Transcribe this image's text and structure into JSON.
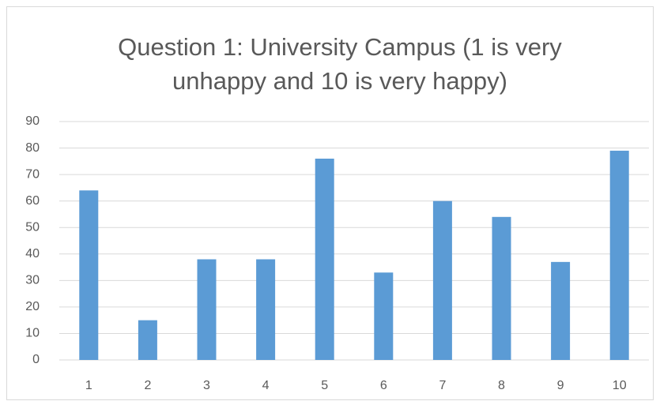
{
  "chart_data": {
    "type": "bar",
    "title": "Question 1: University Campus (1 is very unhappy and 10 is very happy)",
    "categories": [
      "1",
      "2",
      "3",
      "4",
      "5",
      "6",
      "7",
      "8",
      "9",
      "10"
    ],
    "values": [
      64,
      15,
      38,
      38,
      76,
      33,
      60,
      54,
      37,
      79
    ],
    "color": "#5b9bd5",
    "ylim": [
      0,
      90
    ],
    "yticks": [
      0,
      10,
      20,
      30,
      40,
      50,
      60,
      70,
      80,
      90
    ],
    "grid": true
  }
}
